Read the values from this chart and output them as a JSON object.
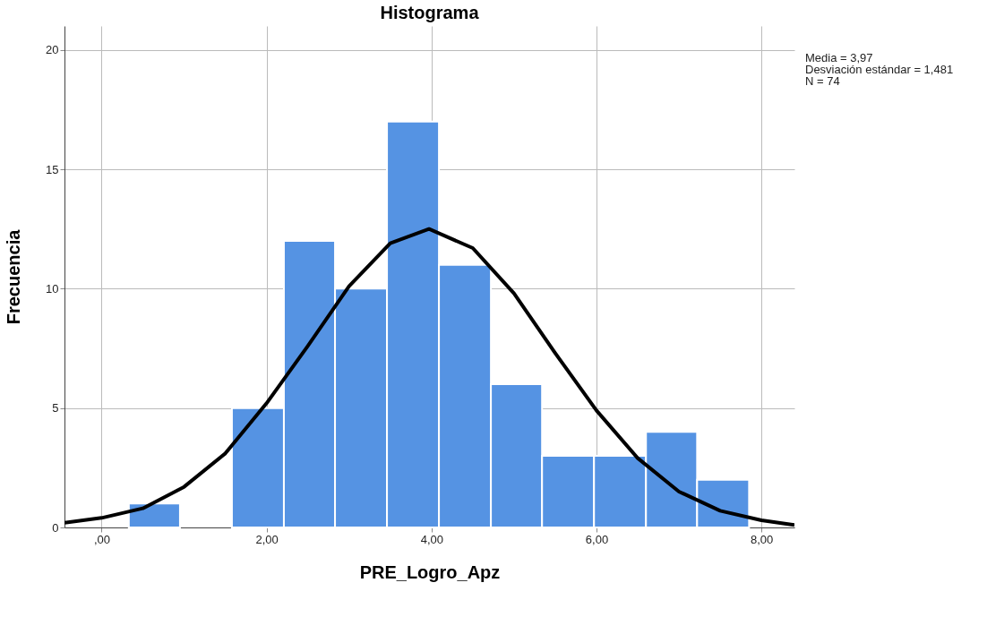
{
  "chart_data": {
    "type": "histogram",
    "title": "Histograma",
    "xlabel": "PRE_Logro_Apz",
    "ylabel": "Frecuencia",
    "series": [
      {
        "type": "histogram",
        "color": "#5593e3",
        "bins": [
          0.33,
          0.95,
          1.58,
          2.21,
          2.83,
          3.46,
          4.09,
          4.72,
          5.34,
          5.97,
          6.6,
          7.22,
          7.85
        ],
        "values": [
          1,
          0,
          5,
          12,
          10,
          17,
          11,
          6,
          3,
          3,
          4,
          2
        ]
      },
      {
        "type": "line",
        "color": "#000000",
        "x": [
          -0.45,
          0,
          0.5,
          1,
          1.5,
          2,
          2.5,
          3,
          3.5,
          3.97,
          4.5,
          5,
          5.5,
          6,
          6.5,
          7,
          7.5,
          8,
          8.4
        ],
        "values": [
          0.2,
          0.4,
          0.8,
          1.7,
          3.1,
          5.2,
          7.6,
          10.1,
          11.9,
          12.5,
          11.7,
          9.8,
          7.3,
          4.9,
          2.9,
          1.5,
          0.7,
          0.3,
          0.1
        ]
      }
    ],
    "xlim": [
      -0.45,
      8.4
    ],
    "ylim": [
      0,
      21
    ],
    "xticks": [
      {
        "value": 0,
        "label": ",00"
      },
      {
        "value": 2,
        "label": "2,00"
      },
      {
        "value": 4,
        "label": "4,00"
      },
      {
        "value": 6,
        "label": "6,00"
      },
      {
        "value": 8,
        "label": "8,00"
      }
    ],
    "yticks": [
      0,
      5,
      10,
      15,
      20
    ],
    "grid": true,
    "annotations": [
      "Media = 3,97",
      "Desviación estándar = 1,481",
      "N = 74"
    ]
  }
}
